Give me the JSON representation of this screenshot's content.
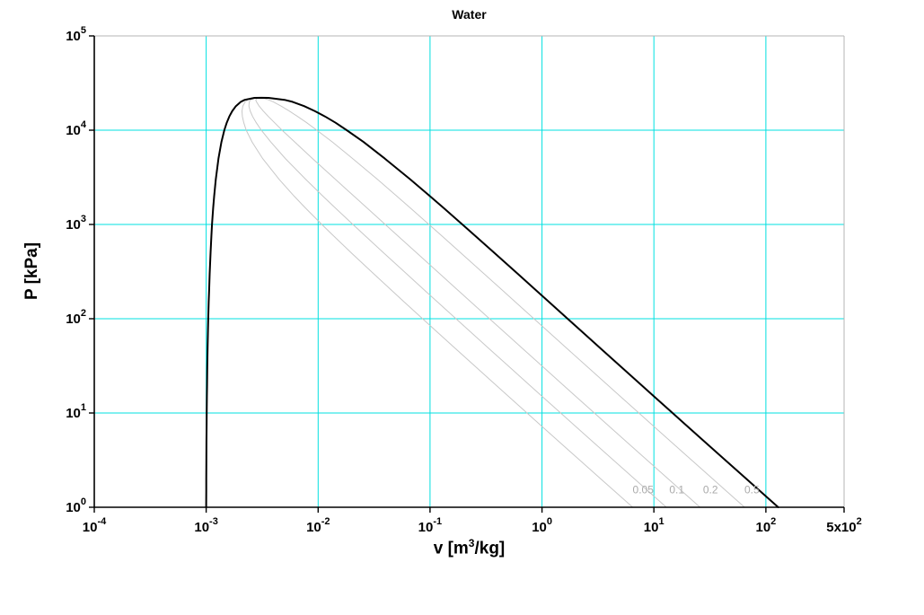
{
  "xlabel_parts": {
    "prefix": "v [m",
    "sup": "3",
    "suffix": "/kg]"
  },
  "chart_data": {
    "type": "line",
    "title": "Water",
    "xlabel": "v [m^3/kg]",
    "ylabel": "P [kPa]",
    "xscale": "log",
    "yscale": "log",
    "xlim": [
      0.0001,
      500
    ],
    "ylim": [
      1,
      100000
    ],
    "grid": true,
    "legend": "none",
    "colors": {
      "grid": "#00e0e0",
      "dome": "#000000",
      "quality": "#c8c8c8",
      "quality_label": "#aaaaaa",
      "frame": "#b4b4b4",
      "axis": "#000000"
    },
    "x_ticks": [
      {
        "v": 0.0001,
        "base": "10",
        "exp": "-4"
      },
      {
        "v": 0.001,
        "base": "10",
        "exp": "-3"
      },
      {
        "v": 0.01,
        "base": "10",
        "exp": "-2"
      },
      {
        "v": 0.1,
        "base": "10",
        "exp": "-1"
      },
      {
        "v": 1,
        "base": "10",
        "exp": "0"
      },
      {
        "v": 10,
        "base": "10",
        "exp": "1"
      },
      {
        "v": 100,
        "base": "10",
        "exp": "2"
      },
      {
        "v": 500,
        "base": "5x10",
        "exp": "2"
      }
    ],
    "y_ticks": [
      {
        "p": 1,
        "base": "10",
        "exp": "0"
      },
      {
        "p": 10,
        "base": "10",
        "exp": "1"
      },
      {
        "p": 100,
        "base": "10",
        "exp": "2"
      },
      {
        "p": 1000,
        "base": "10",
        "exp": "3"
      },
      {
        "p": 10000,
        "base": "10",
        "exp": "4"
      },
      {
        "p": 100000,
        "base": "10",
        "exp": "5"
      }
    ],
    "saturation": {
      "P_kPa": [
        1,
        1.5,
        2,
        3,
        5,
        7.5,
        10,
        15,
        20,
        30,
        50,
        75,
        100,
        150,
        200,
        300,
        500,
        750,
        1000,
        1500,
        2000,
        3000,
        5000,
        7500,
        10000,
        12000,
        14000,
        16000,
        18000,
        20000,
        21000,
        22000,
        22064
      ],
      "vf": [
        0.001,
        0.001001,
        0.001001,
        0.001003,
        0.001005,
        0.001008,
        0.00101,
        0.001014,
        0.001017,
        0.001022,
        0.00103,
        0.001037,
        0.001043,
        0.001053,
        0.001061,
        0.001073,
        0.001093,
        0.001112,
        0.001127,
        0.001154,
        0.001177,
        0.001217,
        0.001286,
        0.001368,
        0.001452,
        0.001526,
        0.00161,
        0.00171,
        0.00184,
        0.00204,
        0.00221,
        0.0027,
        0.003106
      ],
      "vg": [
        129.18,
        87.96,
        66.99,
        45.65,
        28.19,
        19.23,
        14.67,
        10.02,
        7.649,
        5.229,
        3.24,
        2.217,
        1.694,
        1.159,
        0.8857,
        0.6058,
        0.3749,
        0.2556,
        0.1944,
        0.1318,
        0.0996,
        0.0667,
        0.0394,
        0.0254,
        0.018,
        0.0143,
        0.0115,
        0.0093,
        0.0075,
        0.0059,
        0.005,
        0.0036,
        0.003106
      ]
    },
    "quality_lines": {
      "values": [
        0.05,
        0.1,
        0.2,
        0.5
      ],
      "labels": [
        {
          "text": "0.05",
          "v": 8,
          "P": 1.4
        },
        {
          "text": "0.1",
          "v": 16,
          "P": 1.4
        },
        {
          "text": "0.2",
          "v": 32,
          "P": 1.4
        },
        {
          "text": "0.5",
          "v": 75,
          "P": 1.4
        }
      ]
    }
  }
}
